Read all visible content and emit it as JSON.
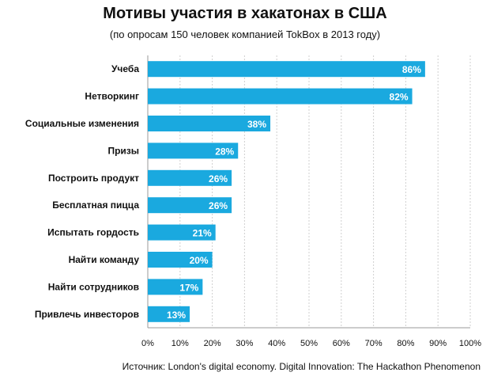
{
  "chart_data": {
    "type": "bar",
    "orientation": "horizontal",
    "title": "Мотивы участия в хакатонах в США",
    "subtitle": "(по опросам 150 человек компанией TokBox в 2013 году)",
    "source": "Источник: London's digital economy. Digital Innovation: The Hackathon Phenomenon",
    "categories": [
      "Учеба",
      "Нетворкинг",
      "Социальные изменения",
      "Призы",
      "Построить продукт",
      "Бесплатная пицца",
      "Испытать гордость",
      "Найти команду",
      "Найти сотрудников",
      "Привлечь инвесторов"
    ],
    "values": [
      86,
      82,
      38,
      28,
      26,
      26,
      21,
      20,
      17,
      13
    ],
    "value_labels": [
      "86%",
      "82%",
      "38%",
      "28%",
      "26%",
      "26%",
      "21%",
      "20%",
      "17%",
      "13%"
    ],
    "xlim": [
      0,
      100
    ],
    "x_ticks": [
      0,
      10,
      20,
      30,
      40,
      50,
      60,
      70,
      80,
      90,
      100
    ],
    "x_tick_labels": [
      "0%",
      "10%",
      "20%",
      "30%",
      "40%",
      "50%",
      "60%",
      "70%",
      "80%",
      "90%",
      "100%"
    ],
    "grid": true,
    "legend": "none",
    "bar_color": "#1aa9df",
    "grid_color": "#cfcfcf"
  }
}
